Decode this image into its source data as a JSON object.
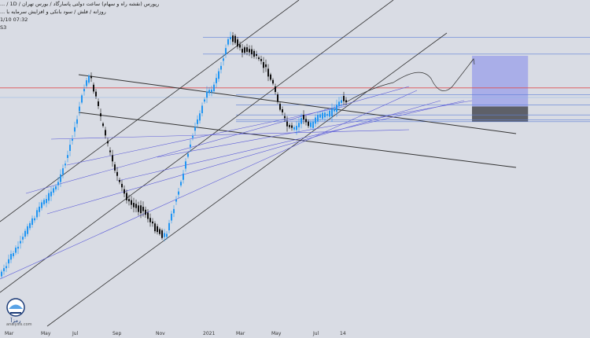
{
  "header": {
    "line1": "رپورس (نقشه راه و سهام) ساعت دولتی پاسارگاد / بورس تهران / 1D / ...",
    "line2": "روزانه / فلش / سود بانکی و افزایش سرمایه با ...",
    "line3": "1/10 07:32",
    "line4": "S3"
  },
  "logo": {
    "text": "analysis.com"
  },
  "chart_data": {
    "type": "candlestick",
    "x_tick_labels": [
      "Mar",
      "May",
      "Jul",
      "Sep",
      "Nov",
      "2021",
      "Mar",
      "May",
      "Jul",
      "14"
    ],
    "horizontal_levels": {
      "red": 0.26,
      "levels": [
        0.11,
        0.16,
        0.28,
        0.31,
        0.34,
        0.355,
        0.36
      ]
    },
    "target_box": {
      "x0": 0.8,
      "x1": 0.895,
      "top": 0.165,
      "bottom": 0.315,
      "fill": "#a9aee8"
    },
    "stop_box": {
      "x0": 0.8,
      "x1": 0.895,
      "top": 0.315,
      "bottom": 0.36,
      "fill": "#5e6068"
    },
    "colors": {
      "up": "#2196f3",
      "down": "#111111",
      "red_level": "#e05050",
      "blue_line": "#5a5ad8",
      "level": "#5e7fd8",
      "trend": "#333333"
    }
  }
}
